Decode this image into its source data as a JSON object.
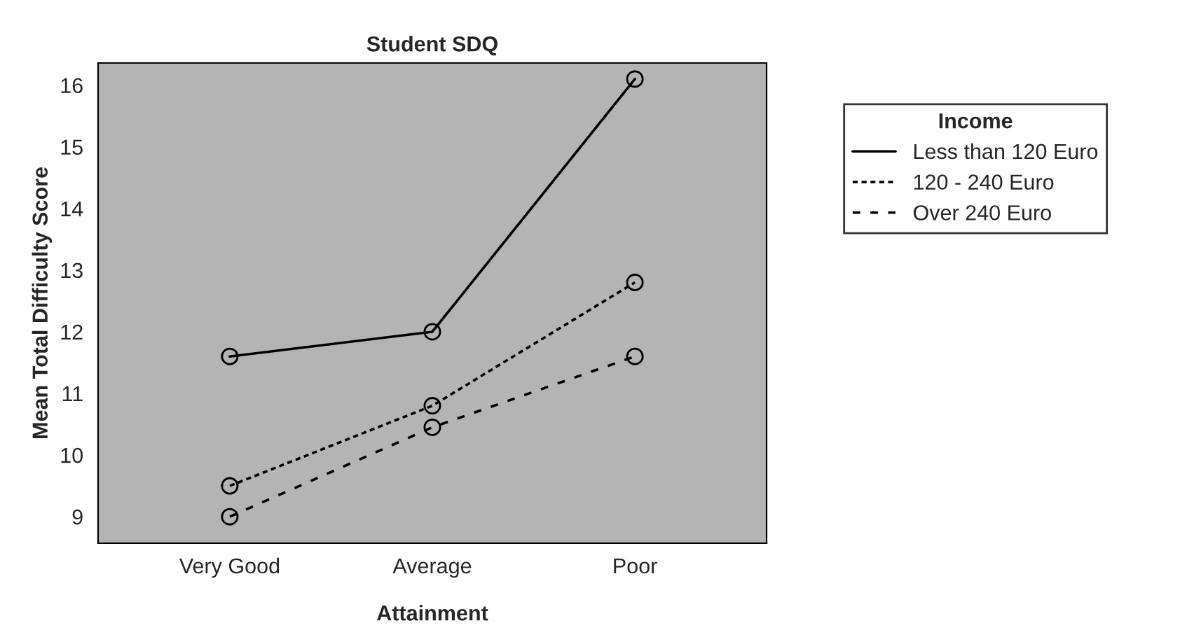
{
  "chart_data": {
    "type": "line",
    "title": "Student SDQ",
    "xlabel": "Attainment",
    "ylabel": "Mean Total Difficulty Score",
    "legend_title": "Income",
    "categories": [
      "Very Good",
      "Average",
      "Poor"
    ],
    "series": [
      {
        "name": "Less than 120 Euro",
        "color": "#000000",
        "line_style": "solid",
        "values": [
          11.6,
          12.0,
          16.1
        ]
      },
      {
        "name": "120 - 240 Euro",
        "color": "#000000",
        "line_style": "dotted",
        "values": [
          9.5,
          10.8,
          12.8
        ]
      },
      {
        "name": "Over 240 Euro",
        "color": "#000000",
        "line_style": "dashed",
        "values": [
          9.0,
          10.45,
          11.6
        ]
      }
    ],
    "ylim": [
      8.57,
      16.36
    ],
    "yticks": [
      9,
      10,
      11,
      12,
      13,
      14,
      15,
      16
    ],
    "marker": "circle",
    "grid": false,
    "legend": "right"
  }
}
